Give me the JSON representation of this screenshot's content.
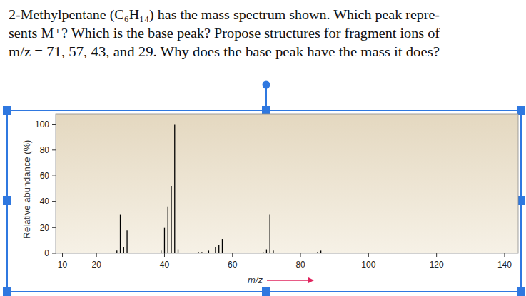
{
  "chart_data": {
    "type": "bar",
    "annotations": [
      "2-Methylpentane (C₆H₁₄) has the mass spectrum shown. Which peak repre-",
      "sents M⁺? Which is the base peak? Propose structures for fragment ions of",
      "m/z = 71, 57, 43, and 29. Why does the base peak have the mass it does?"
    ],
    "annotations_first": "2-Methylpentane (C₆H₁₄) has the mass spectrum shown. Which peak repre-",
    "xlabel": "m/z",
    "ylabel": "Relative abundance (%)",
    "x": [
      26,
      27,
      28,
      29,
      39,
      40,
      41,
      42,
      43,
      44,
      50,
      51,
      53,
      55,
      56,
      57,
      69,
      70,
      71,
      72,
      85,
      86
    ],
    "values": [
      2,
      30,
      5,
      18,
      2,
      20,
      36,
      52,
      100,
      3,
      1,
      1,
      2,
      5,
      6,
      11,
      1,
      3,
      30,
      2,
      1,
      2
    ],
    "color": "#000000",
    "xlim": [
      8,
      144
    ],
    "ylim": [
      0,
      108
    ],
    "xticks": [
      10,
      20,
      40,
      60,
      80,
      100,
      120,
      140
    ],
    "yticks": [
      0,
      20,
      40,
      60,
      80,
      100
    ],
    "grid": false
  }
}
